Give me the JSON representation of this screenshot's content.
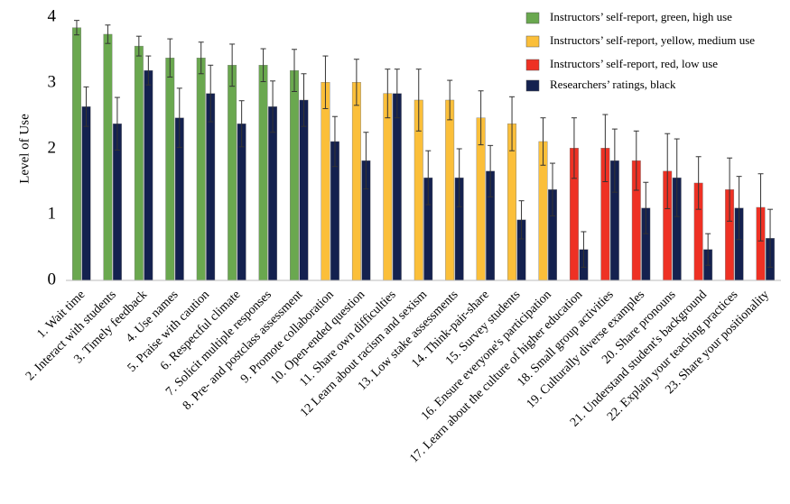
{
  "chart_data": {
    "type": "bar",
    "y_label": "Level of Use",
    "categories": [
      "1. Wait time",
      "2. Interact with students",
      "3. Timely feedback",
      "4. Use names",
      "5. Praise with caution",
      "6. Respectful climate",
      "7. Solicit multiple responses",
      "8. Pre- and postclass assessment",
      "9. Promote collaboration",
      "10. Open-ended question",
      "11. Share own difficulties",
      "12 Learn about racism and sexism",
      "13. Low stake assessments",
      "14. Think-pair-share",
      "15. Survey students",
      "16. Ensure everyone's participation",
      "17. Learn about the culture of higher education",
      "18. Small group activities",
      "19. Culturally diverse examples",
      "20. Share pronouns",
      "21. Understand student's background",
      "22. Explain your teaching practices",
      "23. Share your positionality"
    ],
    "series": [
      {
        "name": "Instructors’ self-report, green, high use",
        "color": "#6aa84f",
        "values": [
          3.84,
          3.74,
          3.56,
          3.38,
          3.38,
          3.27,
          3.27,
          3.19,
          null,
          null,
          null,
          null,
          null,
          null,
          null,
          null,
          null,
          null,
          null,
          null,
          null,
          null,
          null
        ],
        "errors": [
          0.11,
          0.14,
          0.15,
          0.29,
          0.24,
          0.32,
          0.25,
          0.32,
          null,
          null,
          null,
          null,
          null,
          null,
          null,
          null,
          null,
          null,
          null,
          null,
          null,
          null,
          null
        ]
      },
      {
        "name": "Instructors’ self-report, yellow, medium use",
        "color": "#fbbf3a",
        "values": [
          null,
          null,
          null,
          null,
          null,
          null,
          null,
          null,
          3.01,
          3.01,
          2.84,
          2.74,
          2.74,
          2.47,
          2.38,
          2.11,
          null,
          null,
          null,
          null,
          null,
          null,
          null
        ],
        "errors": [
          null,
          null,
          null,
          null,
          null,
          null,
          null,
          null,
          0.4,
          0.35,
          0.37,
          0.47,
          0.3,
          0.41,
          0.41,
          0.36,
          null,
          null,
          null,
          null,
          null,
          null,
          null
        ]
      },
      {
        "name": "Instructors’ self-report, red, low use",
        "color": "#ee3124",
        "values": [
          null,
          null,
          null,
          null,
          null,
          null,
          null,
          null,
          null,
          null,
          null,
          null,
          null,
          null,
          null,
          null,
          2.01,
          2.01,
          1.82,
          1.66,
          1.48,
          1.38,
          1.11
        ],
        "errors": [
          null,
          null,
          null,
          null,
          null,
          null,
          null,
          null,
          null,
          null,
          null,
          null,
          null,
          null,
          null,
          null,
          0.46,
          0.51,
          0.45,
          0.57,
          0.4,
          0.48,
          0.51
        ]
      },
      {
        "name": "Researchers’ ratings, black",
        "color": "#14214f",
        "values": [
          2.64,
          2.38,
          3.19,
          2.47,
          2.84,
          2.38,
          2.64,
          2.74,
          2.11,
          1.82,
          2.84,
          1.56,
          1.56,
          1.66,
          0.92,
          1.38,
          0.47,
          1.82,
          1.1,
          1.56,
          0.47,
          1.1,
          0.64
        ],
        "errors": [
          0.3,
          0.4,
          0.22,
          0.45,
          0.43,
          0.35,
          0.39,
          0.4,
          0.38,
          0.43,
          0.37,
          0.41,
          0.44,
          0.39,
          0.29,
          0.4,
          0.27,
          0.48,
          0.39,
          0.59,
          0.24,
          0.48,
          0.44
        ]
      }
    ],
    "ylim": [
      0,
      4
    ],
    "yticks": [
      0,
      1,
      2,
      3,
      4
    ],
    "grid": false,
    "legend": "top-right"
  }
}
